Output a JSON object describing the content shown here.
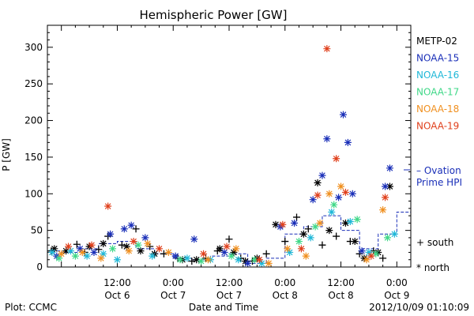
{
  "chart_data": {
    "type": "scatter",
    "title": "Hemispheric Power [GW]",
    "xlabel": "Date and Time",
    "ylabel": "P [GW]",
    "ylim": [
      0,
      330
    ],
    "xlim": [
      "2012-10-05 21:00",
      "2012-10-09 03:00"
    ],
    "yticks": [
      0,
      50,
      100,
      150,
      200,
      250,
      300
    ],
    "xticks": [
      {
        "x": "2012-10-06 12:00",
        "line1": "12:00",
        "line2": "Oct 6"
      },
      {
        "x": "2012-10-07 00:00",
        "line1": "0:00",
        "line2": "Oct 7"
      },
      {
        "x": "2012-10-07 12:00",
        "line1": "12:00",
        "line2": "Oct 7"
      },
      {
        "x": "2012-10-08 00:00",
        "line1": "0:00",
        "line2": "Oct 8"
      },
      {
        "x": "2012-10-08 12:00",
        "line1": "12:00",
        "line2": "Oct 8"
      },
      {
        "x": "2012-10-09 00:00",
        "line1": "0:00",
        "line2": "Oct 9"
      }
    ],
    "series": [
      {
        "name": "METP-02",
        "color": "#000000",
        "marker": "plus",
        "points": [
          [
            "2012-10-05 21:50",
            22
          ],
          [
            "2012-10-06 03:20",
            31
          ],
          [
            "2012-10-06 05:00",
            20
          ],
          [
            "2012-10-06 08:00",
            24
          ],
          [
            "2012-10-06 10:00",
            42
          ],
          [
            "2012-10-06 13:00",
            30
          ],
          [
            "2012-10-06 16:00",
            52
          ],
          [
            "2012-10-06 19:00",
            28
          ],
          [
            "2012-10-06 22:00",
            18
          ],
          [
            "2012-10-07 01:00",
            12
          ],
          [
            "2012-10-07 04:00",
            8
          ],
          [
            "2012-10-07 07:00",
            12
          ],
          [
            "2012-10-07 09:30",
            22
          ],
          [
            "2012-10-07 12:00",
            38
          ],
          [
            "2012-10-07 14:30",
            12
          ],
          [
            "2012-10-07 17:00",
            8
          ],
          [
            "2012-10-07 20:00",
            18
          ],
          [
            "2012-10-08 00:00",
            35
          ],
          [
            "2012-10-08 02:30",
            68
          ],
          [
            "2012-10-08 05:00",
            52
          ],
          [
            "2012-10-08 08:00",
            30
          ],
          [
            "2012-10-08 11:00",
            42
          ],
          [
            "2012-10-08 14:00",
            35
          ],
          [
            "2012-10-08 16:00",
            18
          ],
          [
            "2012-10-08 19:00",
            22
          ],
          [
            "2012-10-08 21:00",
            12
          ]
        ]
      },
      {
        "name": "METP-02",
        "color": "#000000",
        "marker": "star",
        "points": [
          [
            "2012-10-05 22:30",
            25
          ],
          [
            "2012-10-06 01:00",
            22
          ],
          [
            "2012-10-06 06:00",
            28
          ],
          [
            "2012-10-06 09:00",
            32
          ],
          [
            "2012-10-06 14:00",
            28
          ],
          [
            "2012-10-06 17:00",
            22
          ],
          [
            "2012-10-06 20:00",
            18
          ],
          [
            "2012-10-07 02:00",
            10
          ],
          [
            "2012-10-07 05:00",
            10
          ],
          [
            "2012-10-07 10:00",
            25
          ],
          [
            "2012-10-07 13:00",
            20
          ],
          [
            "2012-10-07 15:30",
            8
          ],
          [
            "2012-10-07 18:00",
            12
          ],
          [
            "2012-10-07 22:00",
            58
          ],
          [
            "2012-10-08 04:00",
            45
          ],
          [
            "2012-10-08 07:00",
            115
          ],
          [
            "2012-10-08 09:30",
            50
          ],
          [
            "2012-10-08 13:00",
            60
          ],
          [
            "2012-10-08 15:00",
            35
          ],
          [
            "2012-10-08 17:00",
            12
          ],
          [
            "2012-10-08 20:00",
            20
          ],
          [
            "2012-10-08 22:30",
            110
          ]
        ]
      },
      {
        "name": "NOAA-15",
        "color": "#1a2fb8",
        "marker": "star",
        "points": [
          [
            "2012-10-05 23:00",
            15
          ],
          [
            "2012-10-06 04:00",
            25
          ],
          [
            "2012-10-06 07:00",
            20
          ],
          [
            "2012-10-06 10:30",
            45
          ],
          [
            "2012-10-06 13:30",
            52
          ],
          [
            "2012-10-06 15:00",
            57
          ],
          [
            "2012-10-06 18:00",
            40
          ],
          [
            "2012-10-07 00:30",
            15
          ],
          [
            "2012-10-07 04:30",
            38
          ],
          [
            "2012-10-07 11:00",
            20
          ],
          [
            "2012-10-07 16:00",
            5
          ],
          [
            "2012-10-07 23:00",
            55
          ],
          [
            "2012-10-08 02:00",
            60
          ],
          [
            "2012-10-08 06:00",
            92
          ],
          [
            "2012-10-08 08:00",
            125
          ],
          [
            "2012-10-08 09:00",
            175
          ],
          [
            "2012-10-08 11:30",
            95
          ],
          [
            "2012-10-08 12:30",
            208
          ],
          [
            "2012-10-08 13:30",
            170
          ],
          [
            "2012-10-08 14:30",
            100
          ],
          [
            "2012-10-08 16:30",
            22
          ],
          [
            "2012-10-08 21:30",
            110
          ],
          [
            "2012-10-08 22:30",
            135
          ]
        ]
      },
      {
        "name": "NOAA-16",
        "color": "#20b8d8",
        "marker": "star",
        "points": [
          [
            "2012-10-05 22:00",
            20
          ],
          [
            "2012-10-06 02:00",
            22
          ],
          [
            "2012-10-06 05:30",
            15
          ],
          [
            "2012-10-06 09:00",
            18
          ],
          [
            "2012-10-06 12:00",
            10
          ],
          [
            "2012-10-06 19:30",
            15
          ],
          [
            "2012-10-07 03:00",
            12
          ],
          [
            "2012-10-07 08:00",
            10
          ],
          [
            "2012-10-07 14:00",
            10
          ],
          [
            "2012-10-07 19:00",
            5
          ],
          [
            "2012-10-08 01:00",
            20
          ],
          [
            "2012-10-08 05:30",
            40
          ],
          [
            "2012-10-08 10:00",
            75
          ],
          [
            "2012-10-08 14:00",
            62
          ],
          [
            "2012-10-08 18:00",
            20
          ],
          [
            "2012-10-08 23:30",
            45
          ]
        ]
      },
      {
        "name": "NOAA-17",
        "color": "#40d888",
        "marker": "star",
        "points": [
          [
            "2012-10-05 23:30",
            12
          ],
          [
            "2012-10-06 03:00",
            15
          ],
          [
            "2012-10-06 11:00",
            25
          ],
          [
            "2012-10-06 16:30",
            30
          ],
          [
            "2012-10-07 01:30",
            10
          ],
          [
            "2012-10-07 06:00",
            8
          ],
          [
            "2012-10-07 12:30",
            15
          ],
          [
            "2012-10-07 17:30",
            10
          ],
          [
            "2012-10-08 03:00",
            35
          ],
          [
            "2012-10-08 06:30",
            55
          ],
          [
            "2012-10-08 10:30",
            85
          ],
          [
            "2012-10-08 15:30",
            65
          ],
          [
            "2012-10-08 19:30",
            18
          ],
          [
            "2012-10-08 22:00",
            40
          ]
        ]
      },
      {
        "name": "NOAA-18",
        "color": "#f09020",
        "marker": "star",
        "points": [
          [
            "2012-10-06 00:00",
            18
          ],
          [
            "2012-10-06 04:30",
            20
          ],
          [
            "2012-10-06 08:30",
            12
          ],
          [
            "2012-10-06 14:30",
            22
          ],
          [
            "2012-10-06 18:30",
            32
          ],
          [
            "2012-10-06 23:00",
            20
          ],
          [
            "2012-10-07 07:30",
            10
          ],
          [
            "2012-10-07 13:30",
            25
          ],
          [
            "2012-10-07 20:30",
            5
          ],
          [
            "2012-10-08 00:30",
            25
          ],
          [
            "2012-10-08 04:30",
            15
          ],
          [
            "2012-10-08 07:30",
            60
          ],
          [
            "2012-10-08 09:30",
            100
          ],
          [
            "2012-10-08 12:00",
            110
          ],
          [
            "2012-10-08 17:30",
            10
          ],
          [
            "2012-10-08 21:00",
            78
          ]
        ]
      },
      {
        "name": "NOAA-19",
        "color": "#e0401c",
        "marker": "star",
        "points": [
          [
            "2012-10-06 01:30",
            28
          ],
          [
            "2012-10-06 06:30",
            30
          ],
          [
            "2012-10-06 10:00",
            83
          ],
          [
            "2012-10-06 15:30",
            35
          ],
          [
            "2012-10-06 21:00",
            25
          ],
          [
            "2012-10-07 06:30",
            18
          ],
          [
            "2012-10-07 11:30",
            28
          ],
          [
            "2012-10-07 18:30",
            10
          ],
          [
            "2012-10-07 23:30",
            58
          ],
          [
            "2012-10-08 03:30",
            25
          ],
          [
            "2012-10-08 07:00",
            98
          ],
          [
            "2012-10-08 09:00",
            298
          ],
          [
            "2012-10-08 11:00",
            148
          ],
          [
            "2012-10-08 13:00",
            102
          ],
          [
            "2012-10-08 18:30",
            15
          ],
          [
            "2012-10-08 21:30",
            95
          ]
        ]
      }
    ],
    "step_line": {
      "name": "Ovation Prime HPI",
      "color": "#1a2fb8",
      "points": [
        [
          "2012-10-05 21:00",
          22
        ],
        [
          "2012-10-06 00:00",
          20
        ],
        [
          "2012-10-06 04:00",
          25
        ],
        [
          "2012-10-06 08:00",
          32
        ],
        [
          "2012-10-06 12:00",
          35
        ],
        [
          "2012-10-06 16:00",
          25
        ],
        [
          "2012-10-06 20:00",
          18
        ],
        [
          "2012-10-07 00:00",
          12
        ],
        [
          "2012-10-07 04:00",
          10
        ],
        [
          "2012-10-07 08:00",
          15
        ],
        [
          "2012-10-07 12:00",
          18
        ],
        [
          "2012-10-07 16:00",
          5
        ],
        [
          "2012-10-07 20:00",
          12
        ],
        [
          "2012-10-08 00:00",
          45
        ],
        [
          "2012-10-08 04:00",
          55
        ],
        [
          "2012-10-08 08:00",
          70
        ],
        [
          "2012-10-08 12:00",
          50
        ],
        [
          "2012-10-08 16:00",
          25
        ],
        [
          "2012-10-08 20:00",
          45
        ],
        [
          "2012-10-09 00:00",
          75
        ],
        [
          "2012-10-09 03:00",
          75
        ]
      ]
    }
  },
  "legend": {
    "entries": [
      {
        "label": "METP-02",
        "color": "#000000"
      },
      {
        "label": "NOAA-15",
        "color": "#1a2fb8"
      },
      {
        "label": "NOAA-16",
        "color": "#20b8d8"
      },
      {
        "label": "NOAA-17",
        "color": "#40d888"
      },
      {
        "label": "NOAA-18",
        "color": "#f09020"
      },
      {
        "label": "NOAA-19",
        "color": "#e0401c"
      }
    ],
    "ovation_line1": "– Ovation",
    "ovation_line2": "Prime HPI",
    "ovation_color": "#1a2fb8",
    "south_label": "+ south",
    "north_label": "* north"
  },
  "footer": {
    "left": "Plot: CCMC",
    "right": "2012/10/09 01:10:09"
  }
}
